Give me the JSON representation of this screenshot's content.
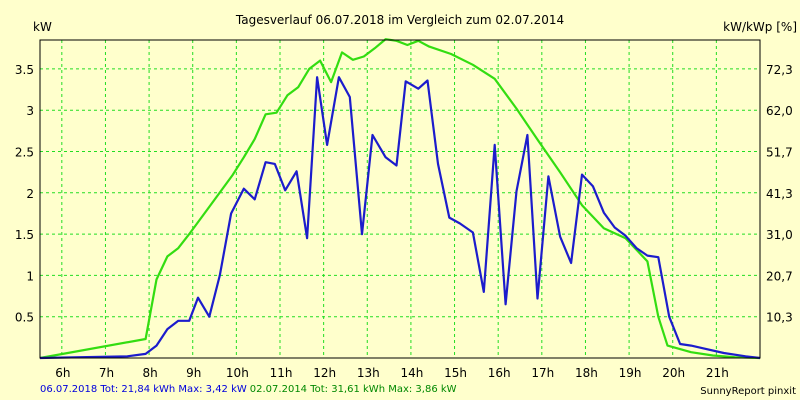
{
  "chart_data": {
    "type": "line",
    "title": "Tagesverlauf 06.07.2018 im Vergleich zum 02.07.2014",
    "ylabel_left": "kW",
    "ylabel_right": "kW/kWp [%]",
    "x_ticks": [
      "6h",
      "7h",
      "8h",
      "9h",
      "10h",
      "11h",
      "12h",
      "13h",
      "14h",
      "15h",
      "16h",
      "17h",
      "18h",
      "19h",
      "20h",
      "21h"
    ],
    "y_ticks_left": [
      "0.5",
      "1",
      "1.5",
      "2",
      "2.5",
      "3",
      "3.5"
    ],
    "y_ticks_right": [
      "10,3",
      "20,7",
      "31,0",
      "41,3",
      "51,7",
      "62,0",
      "72,3"
    ],
    "xlim": [
      5.5,
      22
    ],
    "ylim": [
      0,
      3.85
    ],
    "grid": true,
    "colors": {
      "background": "#ffffcc",
      "grid": "#22dd22",
      "text": "#000000",
      "legend_a": "#0000dd",
      "legend_b": "#008800"
    },
    "series": [
      {
        "name": "06.07.2018",
        "color": "#1c1ccc",
        "points": [
          [
            5.5,
            0.0
          ],
          [
            7.5,
            0.02
          ],
          [
            7.92,
            0.05
          ],
          [
            8.17,
            0.15
          ],
          [
            8.42,
            0.35
          ],
          [
            8.67,
            0.45
          ],
          [
            8.92,
            0.45
          ],
          [
            9.12,
            0.73
          ],
          [
            9.38,
            0.5
          ],
          [
            9.62,
            1.0
          ],
          [
            9.88,
            1.75
          ],
          [
            10.17,
            2.05
          ],
          [
            10.42,
            1.92
          ],
          [
            10.67,
            2.37
          ],
          [
            10.88,
            2.35
          ],
          [
            11.12,
            2.03
          ],
          [
            11.38,
            2.26
          ],
          [
            11.62,
            1.45
          ],
          [
            11.85,
            3.4
          ],
          [
            12.08,
            2.58
          ],
          [
            12.35,
            3.4
          ],
          [
            12.6,
            3.16
          ],
          [
            12.88,
            1.5
          ],
          [
            13.12,
            2.7
          ],
          [
            13.42,
            2.43
          ],
          [
            13.67,
            2.33
          ],
          [
            13.88,
            3.35
          ],
          [
            14.17,
            3.26
          ],
          [
            14.38,
            3.36
          ],
          [
            14.62,
            2.35
          ],
          [
            14.88,
            1.7
          ],
          [
            15.12,
            1.63
          ],
          [
            15.42,
            1.52
          ],
          [
            15.67,
            0.8
          ],
          [
            15.92,
            2.58
          ],
          [
            16.17,
            0.65
          ],
          [
            16.42,
            2.02
          ],
          [
            16.67,
            2.7
          ],
          [
            16.9,
            0.72
          ],
          [
            17.15,
            2.2
          ],
          [
            17.42,
            1.47
          ],
          [
            17.67,
            1.15
          ],
          [
            17.92,
            2.22
          ],
          [
            18.17,
            2.08
          ],
          [
            18.42,
            1.76
          ],
          [
            18.67,
            1.58
          ],
          [
            18.92,
            1.48
          ],
          [
            19.17,
            1.33
          ],
          [
            19.42,
            1.24
          ],
          [
            19.67,
            1.22
          ],
          [
            19.92,
            0.5
          ],
          [
            20.17,
            0.17
          ],
          [
            20.42,
            0.15
          ],
          [
            20.67,
            0.12
          ],
          [
            21.17,
            0.06
          ],
          [
            21.67,
            0.02
          ],
          [
            22.0,
            0.0
          ]
        ]
      },
      {
        "name": "02.07.2014",
        "color": "#33dd11",
        "points": [
          [
            5.5,
            0.0
          ],
          [
            7.92,
            0.23
          ],
          [
            8.17,
            0.95
          ],
          [
            8.42,
            1.23
          ],
          [
            8.67,
            1.33
          ],
          [
            8.92,
            1.5
          ],
          [
            9.42,
            1.86
          ],
          [
            9.92,
            2.22
          ],
          [
            10.17,
            2.43
          ],
          [
            10.42,
            2.65
          ],
          [
            10.67,
            2.95
          ],
          [
            10.92,
            2.97
          ],
          [
            11.17,
            3.18
          ],
          [
            11.42,
            3.28
          ],
          [
            11.67,
            3.5
          ],
          [
            11.92,
            3.6
          ],
          [
            12.17,
            3.34
          ],
          [
            12.42,
            3.7
          ],
          [
            12.67,
            3.61
          ],
          [
            12.92,
            3.65
          ],
          [
            13.17,
            3.75
          ],
          [
            13.42,
            3.86
          ],
          [
            13.67,
            3.84
          ],
          [
            13.92,
            3.79
          ],
          [
            14.17,
            3.84
          ],
          [
            14.42,
            3.77
          ],
          [
            14.92,
            3.68
          ],
          [
            15.42,
            3.55
          ],
          [
            15.92,
            3.38
          ],
          [
            16.42,
            3.02
          ],
          [
            16.92,
            2.63
          ],
          [
            17.42,
            2.25
          ],
          [
            17.92,
            1.85
          ],
          [
            18.42,
            1.57
          ],
          [
            18.92,
            1.45
          ],
          [
            19.42,
            1.17
          ],
          [
            19.67,
            0.5
          ],
          [
            19.88,
            0.15
          ],
          [
            20.42,
            0.07
          ],
          [
            20.92,
            0.03
          ],
          [
            21.42,
            0.01
          ],
          [
            22.0,
            0.0
          ]
        ]
      }
    ],
    "footer": {
      "a": "06.07.2018 Tot: 21,84 kWh Max: 3,42 kW",
      "b": "02.07.2014 Tot: 31,61 kWh Max: 3,86 kW",
      "credit": "SunnyReport pinxit"
    }
  }
}
